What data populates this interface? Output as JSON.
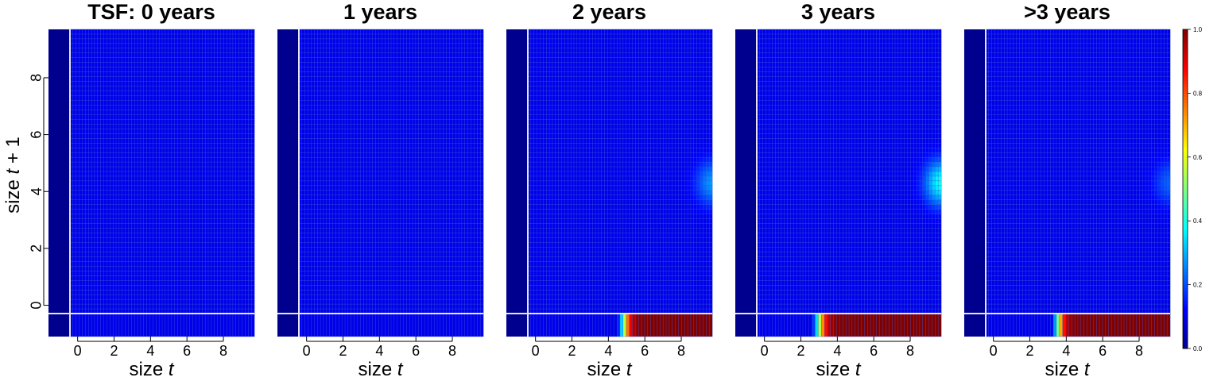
{
  "colors": {
    "background": "#ffffff",
    "divider_line": "#e6e6e6",
    "axis": "#000000",
    "colormap": [
      "#00008f",
      "#0000ff",
      "#00ffff",
      "#ffff00",
      "#ff0000",
      "#800000"
    ]
  },
  "chart_data": [
    {
      "type": "heatmap",
      "title": "TSF: 0 years",
      "xlabel": "size",
      "xlabel_italic": "t",
      "ylabel": "size",
      "ylabel_italic": "t",
      "ylabel_suffix": "+ 1",
      "xlim": [
        -1.6,
        9.7
      ],
      "ylim": [
        -1.1,
        9.7
      ],
      "xticks": [
        "0",
        "2",
        "4",
        "6",
        "8"
      ],
      "yticks": [
        "0",
        "2",
        "4",
        "6",
        "8"
      ],
      "grid": true,
      "recruit_row_transition": null,
      "survival_peak": null
    },
    {
      "type": "heatmap",
      "title": "1 years",
      "xlabel": "size",
      "xlabel_italic": "t",
      "xlim": [
        -1.6,
        9.7
      ],
      "ylim": [
        -1.1,
        9.7
      ],
      "xticks": [
        "0",
        "2",
        "4",
        "6",
        "8"
      ],
      "grid": true,
      "recruit_row_transition": null,
      "survival_peak": null
    },
    {
      "type": "heatmap",
      "title": "2 years",
      "xlabel": "size",
      "xlabel_italic": "t",
      "xlim": [
        -1.6,
        9.7
      ],
      "ylim": [
        -1.1,
        9.7
      ],
      "xticks": [
        "0",
        "2",
        "4",
        "6",
        "8"
      ],
      "grid": true,
      "recruit_row_transition": {
        "center": 4.85,
        "width": 0.18
      },
      "survival_peak": {
        "x": 9.7,
        "y": 4.3,
        "value": 0.28,
        "sx": 0.9,
        "sy": 0.8
      }
    },
    {
      "type": "heatmap",
      "title": "3 years",
      "xlabel": "size",
      "xlabel_italic": "t",
      "xlim": [
        -1.6,
        9.7
      ],
      "ylim": [
        -1.1,
        9.7
      ],
      "xticks": [
        "0",
        "2",
        "4",
        "6",
        "8"
      ],
      "grid": true,
      "recruit_row_transition": {
        "center": 3.0,
        "width": 0.2
      },
      "survival_peak": {
        "x": 9.7,
        "y": 4.3,
        "value": 0.4,
        "sx": 0.9,
        "sy": 0.8
      }
    },
    {
      "type": "heatmap",
      "title": ">3 years",
      "xlabel": "size",
      "xlabel_italic": "t",
      "xlim": [
        -1.6,
        9.7
      ],
      "ylim": [
        -1.1,
        9.7
      ],
      "xticks": [
        "0",
        "2",
        "4",
        "6",
        "8"
      ],
      "grid": true,
      "recruit_row_transition": {
        "center": 3.55,
        "width": 0.18
      },
      "survival_peak": {
        "x": 9.7,
        "y": 4.3,
        "value": 0.22,
        "sx": 0.9,
        "sy": 0.8
      }
    }
  ],
  "colorbar": {
    "range": [
      0,
      1
    ],
    "ticks": [
      "0.0",
      "0.2",
      "0.4",
      "0.6",
      "0.8",
      "1.0"
    ]
  }
}
